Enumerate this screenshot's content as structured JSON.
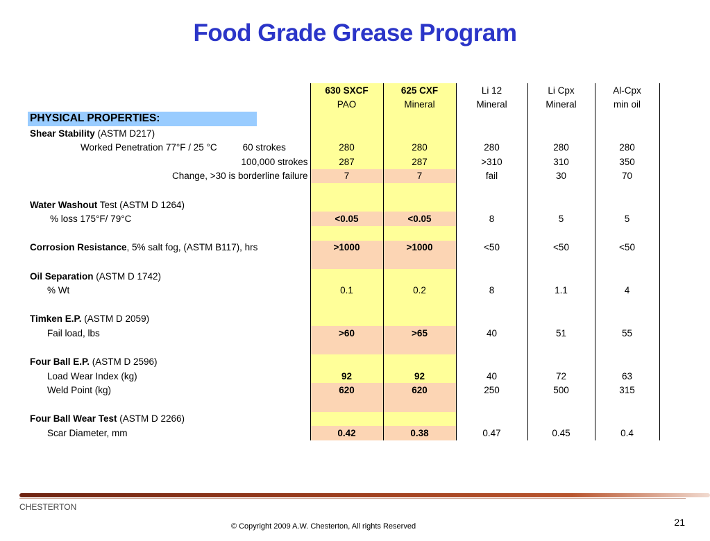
{
  "title": "Food Grade Grease Program",
  "columns": [
    {
      "name": "630 SXCF",
      "base": "PAO"
    },
    {
      "name": "625 CXF",
      "base": "Mineral"
    },
    {
      "name": "Li 12",
      "base": "Mineral"
    },
    {
      "name": "Li Cpx",
      "base": "Mineral"
    },
    {
      "name": "Al-Cpx",
      "base": "min oil"
    }
  ],
  "section_header": "PHYSICAL PROPERTIES:",
  "shear": {
    "name": "Shear Stability",
    "method": " (ASTM D217)",
    "wp_label": "Worked Penetration 77°F / 25 °C",
    "r1": {
      "label": "60 strokes",
      "values": [
        "280",
        "280",
        "280",
        "280",
        "280"
      ]
    },
    "r2": {
      "label": "100,000 strokes",
      "values": [
        "287",
        "287",
        ">310",
        "310",
        "350"
      ]
    },
    "r3": {
      "label": "Change, >30 is borderline failure",
      "values": [
        "7",
        "7",
        "fail",
        "30",
        "70"
      ]
    }
  },
  "washout": {
    "name": "Water Washout",
    "method": " Test (ASTM D 1264)",
    "r1": {
      "label": "% loss 175°F/ 79°C",
      "values": [
        "<0.05",
        "<0.05",
        "8",
        "5",
        "5"
      ]
    }
  },
  "corrosion": {
    "name": "Corrosion Resistance",
    "method": ", 5% salt fog, (ASTM B117), hrs",
    "values": [
      ">1000",
      ">1000",
      "<50",
      "<50",
      "<50"
    ]
  },
  "oilsep": {
    "name": "Oil Separation",
    "method": " (ASTM D 1742)",
    "r1": {
      "label": "% Wt",
      "values": [
        "0.1",
        "0.2",
        "8",
        "1.1",
        "4"
      ]
    }
  },
  "timken": {
    "name": "Timken E.P.",
    "method": " (ASTM D 2059)",
    "r1": {
      "label": "Fail load, lbs",
      "values": [
        ">60",
        ">65",
        "40",
        "51",
        "55"
      ]
    }
  },
  "fourball": {
    "name": "Four Ball E.P.",
    "method": " (ASTM D 2596)",
    "r1": {
      "label": "Load Wear Index (kg)",
      "values": [
        "92",
        "92",
        "40",
        "72",
        "63"
      ]
    },
    "r2": {
      "label": "Weld Point (kg)",
      "values": [
        "620",
        "620",
        "250",
        "500",
        "315"
      ]
    }
  },
  "fourwear": {
    "name": "Four Ball Wear Test",
    "method": " (ASTM D 2266)",
    "r1": {
      "label": "Scar Diameter, mm",
      "values": [
        "0.42",
        "0.38",
        "0.47",
        "0.45",
        "0.4"
      ]
    }
  },
  "footer": {
    "brand": "CHESTERTON",
    "copyright": "© Copyright 2009 A.W. Chesterton, All rights Reserved",
    "page": "21"
  }
}
